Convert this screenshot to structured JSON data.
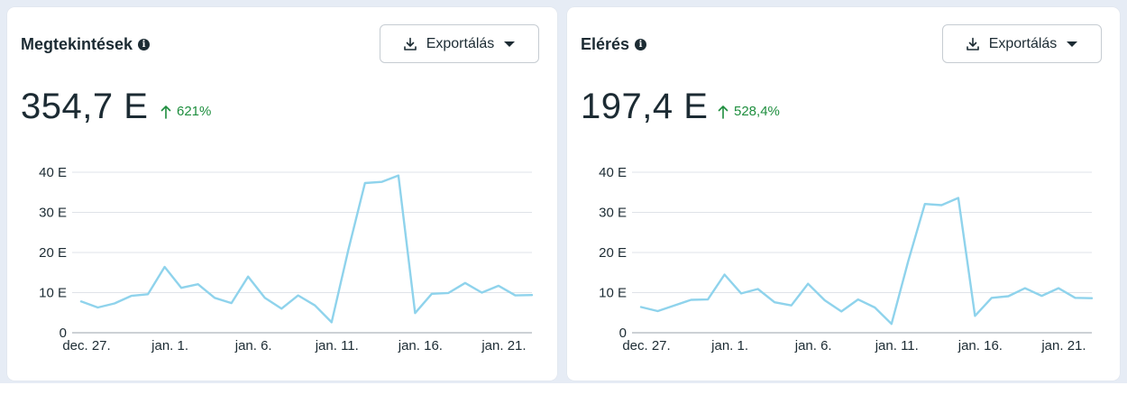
{
  "cards": [
    {
      "title": "Megtekintések",
      "export_label": "Exportálás",
      "value": "354,7 E",
      "change": "621%",
      "chart_data": {
        "type": "line",
        "color": "#8fd3ec",
        "ylim": [
          0,
          40000
        ],
        "yticks": [
          0,
          10000,
          20000,
          30000,
          40000
        ],
        "ytick_labels": [
          "0",
          "10 E",
          "20 E",
          "30 E",
          "40 E"
        ],
        "xtick_labels": [
          "dec. 27.",
          "jan. 1.",
          "jan. 6.",
          "jan. 11.",
          "jan. 16.",
          "jan. 21."
        ],
        "values": [
          7800,
          6300,
          7300,
          9200,
          9600,
          16400,
          11200,
          12100,
          8700,
          7400,
          14000,
          8700,
          6000,
          9300,
          6800,
          2600,
          20600,
          37300,
          37600,
          39200,
          4900,
          9700,
          9900,
          12400,
          10000,
          11700,
          9300,
          9400
        ]
      }
    },
    {
      "title": "Elérés",
      "export_label": "Exportálás",
      "value": "197,4 E",
      "change": "528,4%",
      "chart_data": {
        "type": "line",
        "color": "#8fd3ec",
        "ylim": [
          0,
          40000
        ],
        "yticks": [
          0,
          10000,
          20000,
          30000,
          40000
        ],
        "ytick_labels": [
          "0",
          "10 E",
          "20 E",
          "30 E",
          "40 E"
        ],
        "xtick_labels": [
          "dec. 27.",
          "jan. 1.",
          "jan. 6.",
          "jan. 11.",
          "jan. 16.",
          "jan. 21."
        ],
        "values": [
          6400,
          5400,
          6800,
          8200,
          8300,
          14500,
          9800,
          10900,
          7600,
          6800,
          12200,
          8100,
          5300,
          8300,
          6300,
          2200,
          17800,
          32100,
          31800,
          33600,
          4200,
          8700,
          9100,
          11100,
          9200,
          11100,
          8700,
          8600
        ]
      }
    }
  ]
}
